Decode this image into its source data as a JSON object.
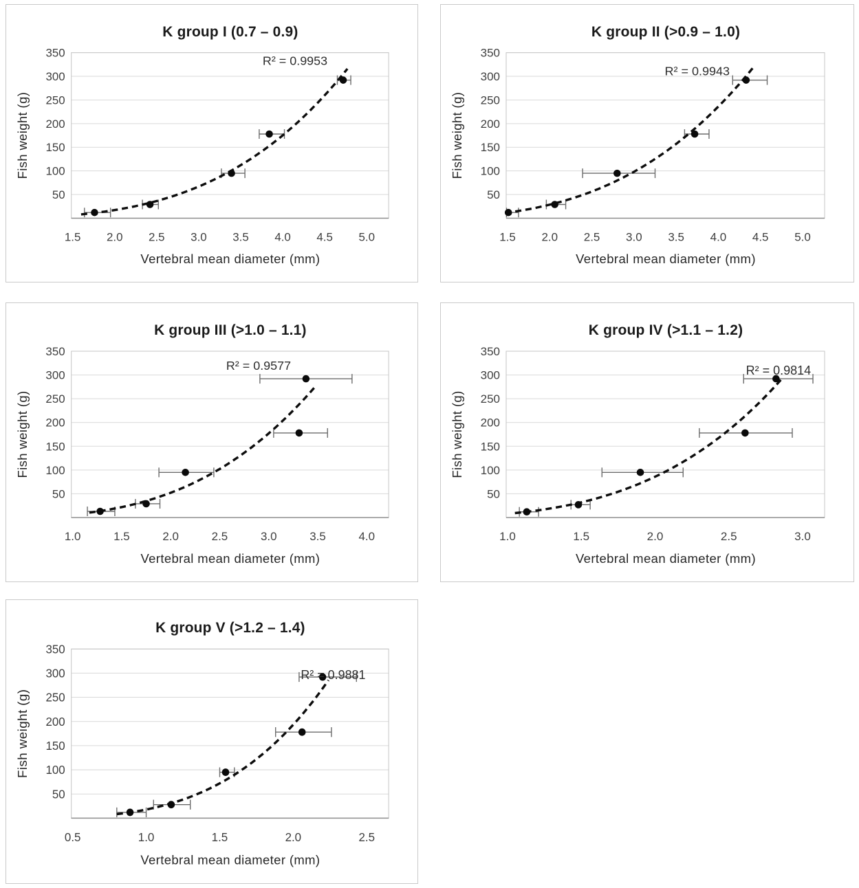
{
  "page": {
    "background": "#ffffff"
  },
  "colors": {
    "title_text": "#1a1a1a",
    "tick_text": "#3f3f3f",
    "axis_title_text": "#262626",
    "gridline": "#d9d9d9",
    "plot_border": "#c6c6c6",
    "axis_line": "#8f8f8f",
    "marker": "#0a0a0a",
    "error_bar": "#6b6b6b",
    "trendline": "#0d0d0d",
    "panel_border": "#c9c9c9"
  },
  "chart_data": [
    {
      "type": "scatter",
      "title": "K group I (0.7 – 0.9)",
      "r2_label": "R² = 0.9953",
      "xlabel": "Vertebral mean diameter (mm)",
      "ylabel": "Fish weight (g)",
      "x_ticks": [
        1.5,
        2.0,
        2.5,
        3.0,
        3.5,
        4.0,
        4.5,
        5.0
      ],
      "y_ticks": [
        50,
        100,
        150,
        200,
        250,
        300,
        350
      ],
      "ylim": [
        0,
        350
      ],
      "grid": "horizontal",
      "legend": "none",
      "trendline": {
        "style": "dashed",
        "fit": "power",
        "x_range": [
          1.6,
          4.77
        ]
      },
      "points": [
        {
          "x": 1.76,
          "y": 12,
          "xlo": 1.64,
          "xhi": 1.95
        },
        {
          "x": 2.42,
          "y": 29,
          "xlo": 2.33,
          "xhi": 2.52
        },
        {
          "x": 3.39,
          "y": 95,
          "xlo": 3.27,
          "xhi": 3.55
        },
        {
          "x": 3.84,
          "y": 178,
          "xlo": 3.72,
          "xhi": 4.02
        },
        {
          "x": 4.72,
          "y": 292,
          "xlo": 4.65,
          "xhi": 4.81
        }
      ],
      "r2_pos": {
        "fx": 0.705,
        "dy": 12
      }
    },
    {
      "type": "scatter",
      "title": "K group II (>0.9 – 1.0)",
      "r2_label": "R² = 0.9943",
      "xlabel": "Vertebral mean diameter (mm)",
      "ylabel": "Fish weight (g)",
      "x_ticks": [
        1.5,
        2.0,
        2.5,
        3.0,
        3.5,
        4.0,
        4.5,
        5.0
      ],
      "y_ticks": [
        50,
        100,
        150,
        200,
        250,
        300,
        350
      ],
      "ylim": [
        0,
        350
      ],
      "grid": "horizontal",
      "legend": "none",
      "trendline": {
        "style": "dashed",
        "fit": "power",
        "x_range": [
          1.47,
          4.43
        ]
      },
      "points": [
        {
          "x": 1.51,
          "y": 12,
          "xlo": 1.45,
          "xhi": 1.63
        },
        {
          "x": 2.06,
          "y": 29,
          "xlo": 1.96,
          "xhi": 2.19
        },
        {
          "x": 2.8,
          "y": 95,
          "xlo": 2.39,
          "xhi": 3.25
        },
        {
          "x": 3.72,
          "y": 178,
          "xlo": 3.6,
          "xhi": 3.89
        },
        {
          "x": 4.33,
          "y": 292,
          "xlo": 4.17,
          "xhi": 4.58
        }
      ],
      "r2_pos": {
        "fx": 0.6,
        "dy": 27
      }
    },
    {
      "type": "scatter",
      "title": "K group III (>1.0 – 1.1)",
      "r2_label": "R² = 0.9577",
      "xlabel": "Vertebral mean diameter (mm)",
      "ylabel": "Fish weight (g)",
      "x_ticks": [
        1.0,
        1.5,
        2.0,
        2.5,
        3.0,
        3.5,
        4.0
      ],
      "y_ticks": [
        50,
        100,
        150,
        200,
        250,
        300,
        350
      ],
      "ylim": [
        0,
        350
      ],
      "grid": "horizontal",
      "legend": "none",
      "trendline": {
        "style": "dashed",
        "fit": "power",
        "x_range": [
          1.17,
          3.49
        ]
      },
      "points": [
        {
          "x": 1.28,
          "y": 13,
          "xlo": 1.15,
          "xhi": 1.43
        },
        {
          "x": 1.75,
          "y": 29,
          "xlo": 1.64,
          "xhi": 1.89
        },
        {
          "x": 2.15,
          "y": 95,
          "xlo": 1.88,
          "xhi": 2.44
        },
        {
          "x": 3.31,
          "y": 178,
          "xlo": 3.05,
          "xhi": 3.6
        },
        {
          "x": 3.38,
          "y": 292,
          "xlo": 2.91,
          "xhi": 3.85
        }
      ],
      "r2_pos": {
        "fx": 0.59,
        "dy": 21
      }
    },
    {
      "type": "scatter",
      "title": "K group IV (>1.1 – 1.2)",
      "r2_label": "R² = 0.9814",
      "xlabel": "Vertebral mean diameter (mm)",
      "ylabel": "Fish weight (g)",
      "x_ticks": [
        1.0,
        1.5,
        2.0,
        2.5,
        3.0
      ],
      "y_ticks": [
        50,
        100,
        150,
        200,
        250,
        300,
        350
      ],
      "ylim": [
        0,
        350
      ],
      "grid": "horizontal",
      "legend": "none",
      "trendline": {
        "style": "dashed",
        "fit": "power",
        "x_range": [
          1.05,
          2.87
        ]
      },
      "points": [
        {
          "x": 1.13,
          "y": 12,
          "xlo": 1.08,
          "xhi": 1.21
        },
        {
          "x": 1.48,
          "y": 27,
          "xlo": 1.43,
          "xhi": 1.56
        },
        {
          "x": 1.9,
          "y": 95,
          "xlo": 1.64,
          "xhi": 2.19
        },
        {
          "x": 2.61,
          "y": 178,
          "xlo": 2.3,
          "xhi": 2.93
        },
        {
          "x": 2.82,
          "y": 292,
          "xlo": 2.6,
          "xhi": 3.07
        }
      ],
      "r2_pos": {
        "fx": 0.855,
        "dy": 28
      }
    },
    {
      "type": "scatter",
      "title": "K group V (>1.2 – 1.4)",
      "r2_label": "R² = 0.9881",
      "xlabel": "Vertebral mean diameter (mm)",
      "ylabel": "Fish weight (g)",
      "x_ticks": [
        0.5,
        1.0,
        1.5,
        2.0,
        2.5
      ],
      "y_ticks": [
        50,
        100,
        150,
        200,
        250,
        300,
        350
      ],
      "ylim": [
        0,
        350
      ],
      "grid": "horizontal",
      "legend": "none",
      "trendline": {
        "style": "dashed",
        "fit": "power",
        "x_range": [
          0.8,
          2.24
        ]
      },
      "points": [
        {
          "x": 0.89,
          "y": 12,
          "xlo": 0.8,
          "xhi": 1.0
        },
        {
          "x": 1.17,
          "y": 28,
          "xlo": 1.05,
          "xhi": 1.3
        },
        {
          "x": 1.54,
          "y": 95,
          "xlo": 1.5,
          "xhi": 1.6
        },
        {
          "x": 2.06,
          "y": 178,
          "xlo": 1.88,
          "xhi": 2.26
        },
        {
          "x": 2.2,
          "y": 292,
          "xlo": 2.04,
          "xhi": 2.43
        }
      ],
      "r2_pos": {
        "fx": 0.825,
        "dy": 37
      }
    }
  ]
}
